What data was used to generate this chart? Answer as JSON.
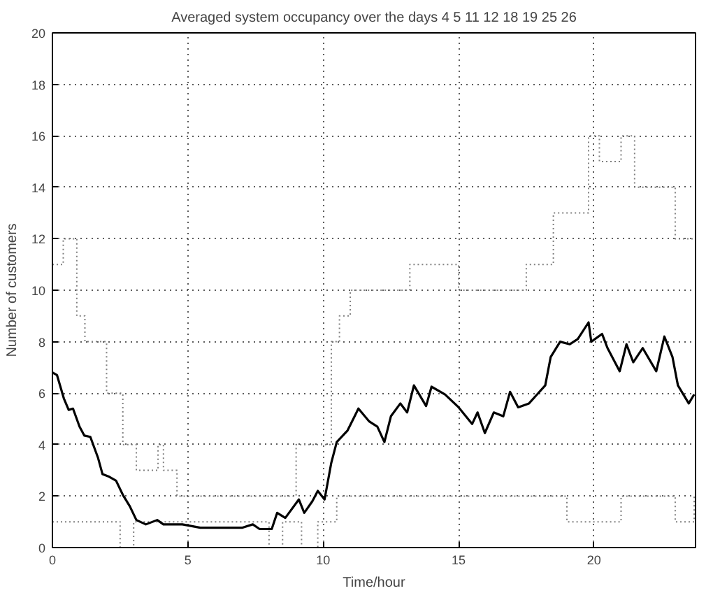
{
  "chart_data": {
    "type": "line",
    "title": "Averaged system occupancy over the days 4 5 11 12 18 19 25 26",
    "xlabel": "Time/hour",
    "ylabel": "Number of customers",
    "xlim": [
      0,
      23.75
    ],
    "ylim": [
      0,
      20
    ],
    "xticks": [
      0,
      5,
      10,
      15,
      20
    ],
    "yticks": [
      0,
      2,
      4,
      6,
      8,
      10,
      12,
      14,
      16,
      18,
      20
    ],
    "grid": true,
    "series": [
      {
        "type": "step",
        "line_style": "dotted",
        "color": "#808080",
        "x": [
          0,
          0.4,
          0.9,
          1.2,
          2.0,
          2.6,
          3.1,
          3.9,
          4.1,
          4.6,
          9.0,
          10.3,
          10.6,
          11.0,
          13.2,
          15,
          16,
          17.5,
          18.5,
          19.8,
          20.2,
          21,
          21.5,
          22,
          23,
          23.7
        ],
        "values": [
          11,
          12,
          9,
          8,
          6,
          4,
          3,
          4,
          3,
          2,
          4,
          8,
          9,
          10,
          11,
          10,
          10,
          11,
          13,
          16,
          15,
          16,
          14,
          14,
          12,
          12
        ]
      },
      {
        "type": "step",
        "line_style": "dotted",
        "color": "#808080",
        "x": [
          0,
          1,
          2.5,
          3,
          8.0,
          8.5,
          9.2,
          9.8,
          10.5,
          12,
          18,
          19,
          20.5,
          21,
          23,
          23.7
        ],
        "values": [
          1,
          1,
          0,
          1,
          0,
          1,
          0,
          1,
          2,
          2,
          2,
          1,
          1,
          2,
          1,
          2
        ]
      },
      {
        "line_style": "solid",
        "color": "#000000",
        "x": [
          0,
          0.17,
          0.42,
          0.6,
          0.76,
          1.0,
          1.18,
          1.4,
          1.68,
          1.85,
          2.1,
          2.35,
          2.6,
          2.86,
          3.1,
          3.45,
          3.87,
          4.1,
          4.8,
          5.46,
          6.5,
          7.0,
          7.4,
          7.65,
          8.1,
          8.3,
          8.6,
          9.1,
          9.3,
          9.6,
          9.8,
          10.05,
          10.3,
          10.5,
          10.9,
          11.3,
          11.7,
          12.0,
          12.26,
          12.5,
          12.85,
          13.1,
          13.35,
          13.8,
          14.0,
          14.5,
          15.0,
          15.5,
          15.7,
          15.97,
          16.3,
          16.65,
          16.9,
          17.2,
          17.6,
          17.9,
          18.2,
          18.4,
          18.75,
          19.1,
          19.4,
          19.8,
          19.9,
          20.3,
          20.5,
          20.95,
          21.2,
          21.45,
          21.8,
          22.3,
          22.6,
          22.9,
          23.1,
          23.5,
          23.7
        ],
        "values": [
          6.8,
          6.7,
          5.8,
          5.35,
          5.4,
          4.7,
          4.35,
          4.3,
          3.5,
          2.85,
          2.75,
          2.6,
          2.05,
          1.6,
          1.07,
          0.9,
          1.07,
          0.9,
          0.9,
          0.77,
          0.77,
          0.77,
          0.9,
          0.72,
          0.72,
          1.35,
          1.15,
          1.87,
          1.35,
          1.8,
          2.2,
          1.87,
          3.3,
          4.1,
          4.55,
          5.4,
          4.9,
          4.7,
          4.1,
          5.1,
          5.6,
          5.25,
          6.3,
          5.5,
          6.25,
          5.95,
          5.45,
          4.8,
          5.25,
          4.45,
          5.25,
          5.1,
          6.05,
          5.45,
          5.6,
          5.95,
          6.3,
          7.4,
          8.0,
          7.9,
          8.1,
          8.75,
          8.0,
          8.3,
          7.75,
          6.85,
          7.9,
          7.2,
          7.75,
          6.85,
          8.2,
          7.4,
          6.3,
          5.6,
          5.95
        ]
      }
    ]
  }
}
